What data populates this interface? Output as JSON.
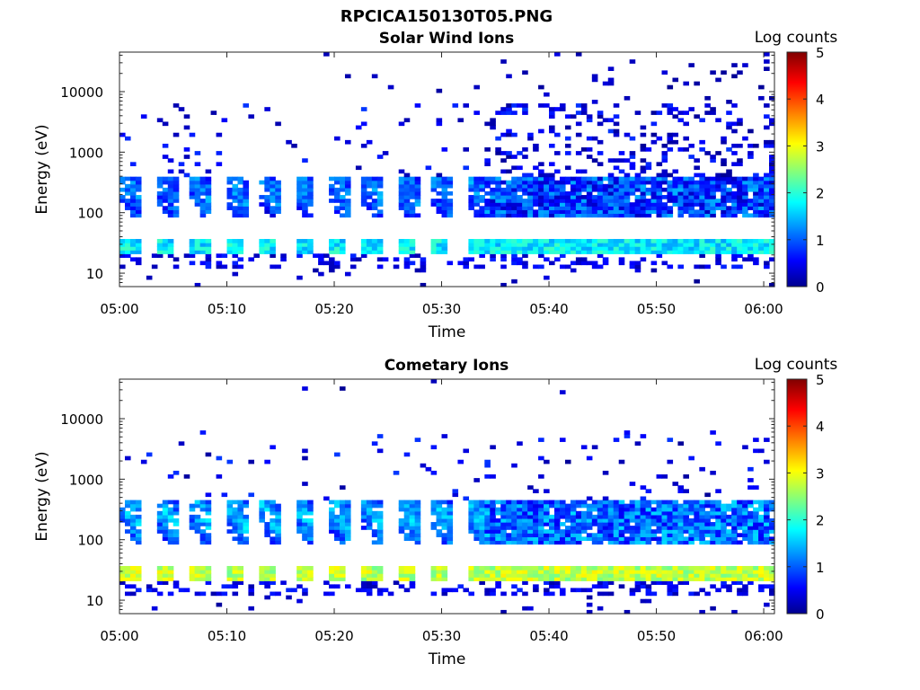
{
  "figure": {
    "title": "RPCICA150130T05.PNG"
  },
  "chart_data": [
    {
      "type": "heatmap",
      "title": "Solar Wind Ions",
      "xlabel": "Time",
      "ylabel": "Energy (eV)",
      "x_ticks": [
        "05:00",
        "05:10",
        "05:20",
        "05:30",
        "05:40",
        "05:50",
        "06:00"
      ],
      "xlim": [
        "05:00",
        "06:01"
      ],
      "y_scale": "log",
      "ylim": [
        6,
        45000
      ],
      "y_ticks": [
        10,
        100,
        1000,
        10000
      ],
      "y_tick_labels": [
        "10",
        "100",
        "1000",
        "10000"
      ],
      "colorbar": {
        "label": "Log counts",
        "min": 0,
        "max": 5,
        "ticks": [
          "0",
          "1",
          "2",
          "3",
          "4",
          "5"
        ],
        "colormap": "jet"
      },
      "pattern": {
        "pulsed_period_start": "05:00",
        "pulsed_period_end": "05:33",
        "sweep_period_min": 3.2,
        "continuous_period_start": "05:34",
        "bands": [
          {
            "energy_low_eV": 20,
            "energy_high_eV": 35,
            "log_counts": 1.8
          },
          {
            "energy_low_eV": 80,
            "energy_high_eV": 400,
            "log_counts": 1.3
          }
        ]
      }
    },
    {
      "type": "heatmap",
      "title": "Cometary Ions",
      "xlabel": "Time",
      "ylabel": "Energy (eV)",
      "x_ticks": [
        "05:00",
        "05:10",
        "05:20",
        "05:30",
        "05:40",
        "05:50",
        "06:00"
      ],
      "xlim": [
        "05:00",
        "06:01"
      ],
      "y_scale": "log",
      "ylim": [
        6,
        45000
      ],
      "y_ticks": [
        10,
        100,
        1000,
        10000
      ],
      "y_tick_labels": [
        "10",
        "100",
        "1000",
        "10000"
      ],
      "colorbar": {
        "label": "Log counts",
        "min": 0,
        "max": 5,
        "ticks": [
          "0",
          "1",
          "2",
          "3",
          "4",
          "5"
        ],
        "colormap": "jet"
      },
      "pattern": {
        "pulsed_period_start": "05:00",
        "pulsed_period_end": "05:33",
        "sweep_period_min": 3.2,
        "continuous_period_start": "05:34",
        "bands": [
          {
            "energy_low_eV": 20,
            "energy_high_eV": 35,
            "log_counts": 2.8
          },
          {
            "energy_low_eV": 80,
            "energy_high_eV": 450,
            "log_counts": 1.6
          }
        ]
      }
    }
  ]
}
